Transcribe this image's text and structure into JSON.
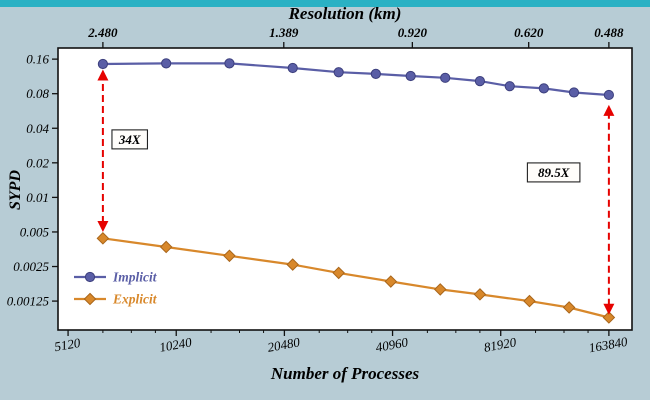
{
  "colors": {
    "background": "#b7ccd5",
    "top_strip": "#2ab1c4",
    "plot_background": "#ffffff",
    "axis_line": "#111111",
    "implicit": "#5a5ea6",
    "explicit": "#d8882b",
    "arrow_red": "#e60200"
  },
  "chart_data": {
    "type": "line",
    "top_axis_title": "Resolution (km)",
    "xlabel": "Number of Processes",
    "ylabel": "SYPD",
    "x_scale": "log",
    "y_scale": "log",
    "xlim": [
      4800,
      190000
    ],
    "ylim": [
      0.0007,
      0.2
    ],
    "grid": false,
    "x_ticks": {
      "values": [
        5120,
        10240,
        20480,
        40960,
        81920,
        163840
      ],
      "labels": [
        "5120",
        "10240",
        "20480",
        "40960",
        "81920",
        "163840"
      ]
    },
    "y_ticks": {
      "values": [
        0.16,
        0.08,
        0.04,
        0.02,
        0.01,
        0.005,
        0.0025,
        0.00125
      ],
      "labels": [
        "0.16",
        "0.08",
        "0.04",
        "0.02",
        "0.01",
        "0.005",
        "0.0025",
        "0.00125"
      ]
    },
    "top_ticks": {
      "values": [
        6400,
        20400,
        46500,
        98000,
        163840
      ],
      "labels": [
        "2.480",
        "1.389",
        "0.920",
        "0.620",
        "0.488"
      ]
    },
    "series": [
      {
        "name": "Implicit",
        "marker": "circle",
        "color": "#5a5ea6",
        "edge_color": "#3c3f7d",
        "x": [
          6400,
          9600,
          14400,
          21600,
          29000,
          36800,
          46000,
          57400,
          71700,
          86800,
          108000,
          131000,
          163840
        ],
        "y": [
          0.145,
          0.147,
          0.147,
          0.134,
          0.123,
          0.119,
          0.114,
          0.11,
          0.103,
          0.093,
          0.089,
          0.082,
          0.078
        ]
      },
      {
        "name": "Explicit",
        "marker": "diamond",
        "color": "#d8882b",
        "edge_color": "#a8651a",
        "x": [
          6400,
          9600,
          14400,
          21600,
          29000,
          40500,
          55600,
          71700,
          98500,
          127000,
          163840
        ],
        "y": [
          0.0044,
          0.0037,
          0.0031,
          0.0026,
          0.0022,
          0.00185,
          0.00158,
          0.00143,
          0.00125,
          0.0011,
          0.0009
        ]
      }
    ],
    "annotations": [
      {
        "x": 6400,
        "y_from": 0.005,
        "y_to": 0.13,
        "label": "34X",
        "label_x": 7600,
        "label_y": 0.032
      },
      {
        "x": 163840,
        "y_from": 0.00095,
        "y_to": 0.064,
        "label": "89.5X",
        "label_x": 115000,
        "label_y": 0.0165
      }
    ],
    "legend": {
      "position": "lower-left",
      "entries": [
        "Implicit",
        "Explicit"
      ]
    }
  }
}
